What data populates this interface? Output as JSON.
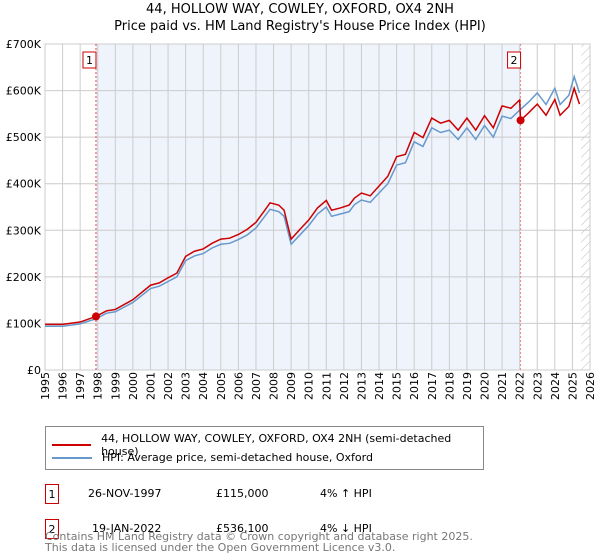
{
  "title": "44, HOLLOW WAY, COWLEY, OXFORD, OX4 2NH",
  "subtitle": "Price paid vs. HM Land Registry's House Price Index (HPI)",
  "chart_data": {
    "type": "line",
    "title": "44, HOLLOW WAY, COWLEY, OXFORD, OX4 2NH",
    "subtitle": "Price paid vs. HM Land Registry's House Price Index (HPI)",
    "xlim": [
      1995,
      2026
    ],
    "ylim": [
      0,
      700000
    ],
    "x_ticks": [
      "1995",
      "1996",
      "1997",
      "1998",
      "1999",
      "2000",
      "2001",
      "2002",
      "2003",
      "2004",
      "2005",
      "2006",
      "2007",
      "2008",
      "2009",
      "2010",
      "2011",
      "2012",
      "2013",
      "2014",
      "2015",
      "2016",
      "2017",
      "2018",
      "2019",
      "2020",
      "2021",
      "2022",
      "2023",
      "2024",
      "2025",
      "2026"
    ],
    "y_ticks": [
      {
        "v": 0,
        "l": "£0"
      },
      {
        "v": 100000,
        "l": "£100K"
      },
      {
        "v": 200000,
        "l": "£200K"
      },
      {
        "v": 300000,
        "l": "£300K"
      },
      {
        "v": 400000,
        "l": "£400K"
      },
      {
        "v": 500000,
        "l": "£500K"
      },
      {
        "v": 600000,
        "l": "£600K"
      },
      {
        "v": 700000,
        "l": "£700K"
      }
    ],
    "grid": true,
    "shaded_range": [
      1997.9,
      2022.05
    ],
    "hatched_from": 2025.5,
    "series": [
      {
        "name": "44, HOLLOW WAY, COWLEY, OXFORD, OX4 2NH (semi-detached house)",
        "color": "#cc0000",
        "x": [
          1995,
          1996,
          1997,
          1997.9,
          1998.5,
          1999,
          2000,
          2001,
          2001.5,
          2002,
          2002.5,
          2003,
          2003.5,
          2004,
          2004.5,
          2005,
          2005.5,
          2006,
          2006.5,
          2007,
          2007.5,
          2007.8,
          2008.3,
          2008.6,
          2009,
          2009.5,
          2010,
          2010.5,
          2011,
          2011.3,
          2011.8,
          2012.3,
          2012.6,
          2013,
          2013.5,
          2014,
          2014.5,
          2015,
          2015.5,
          2016,
          2016.5,
          2017,
          2017.5,
          2018,
          2018.5,
          2019,
          2019.5,
          2020,
          2020.5,
          2021,
          2021.5,
          2022,
          2022.05,
          2022.5,
          2023,
          2023.5,
          2024,
          2024.3,
          2024.8,
          2025.1,
          2025.4
        ],
        "y": [
          98000,
          98000,
          103000,
          115000,
          127000,
          130000,
          151000,
          182000,
          187000,
          198000,
          208000,
          244000,
          255000,
          260000,
          272000,
          281000,
          283000,
          291000,
          302000,
          317000,
          343000,
          359000,
          354000,
          343000,
          281000,
          302000,
          322000,
          348000,
          364000,
          343000,
          348000,
          354000,
          369000,
          380000,
          374000,
          395000,
          416000,
          458000,
          463000,
          510000,
          499000,
          541000,
          530000,
          536000,
          515000,
          541000,
          515000,
          546000,
          520000,
          567000,
          562000,
          580000,
          536100,
          552000,
          571000,
          547000,
          581000,
          547000,
          566000,
          605000,
          571000
        ]
      },
      {
        "name": "HPI: Average price, semi-detached house, Oxford",
        "color": "#6699cc",
        "x": [
          1995,
          1996,
          1997,
          1997.9,
          1998.5,
          1999,
          2000,
          2001,
          2001.5,
          2002,
          2002.5,
          2003,
          2003.5,
          2004,
          2004.5,
          2005,
          2005.5,
          2006,
          2006.5,
          2007,
          2007.5,
          2007.8,
          2008.3,
          2008.6,
          2009,
          2009.5,
          2010,
          2010.5,
          2011,
          2011.3,
          2011.8,
          2012.3,
          2012.6,
          2013,
          2013.5,
          2014,
          2014.5,
          2015,
          2015.5,
          2016,
          2016.5,
          2017,
          2017.5,
          2018,
          2018.5,
          2019,
          2019.5,
          2020,
          2020.5,
          2021,
          2021.5,
          2022,
          2022.5,
          2023,
          2023.5,
          2024,
          2024.3,
          2024.8,
          2025.1,
          2025.4
        ],
        "y": [
          94000,
          94000,
          99000,
          110000,
          122000,
          125000,
          145000,
          175000,
          180000,
          190000,
          200000,
          235000,
          245000,
          250000,
          262000,
          270000,
          272000,
          280000,
          290000,
          305000,
          330000,
          345000,
          340000,
          330000,
          270000,
          290000,
          310000,
          335000,
          350000,
          330000,
          335000,
          340000,
          355000,
          365000,
          360000,
          380000,
          400000,
          440000,
          445000,
          490000,
          480000,
          520000,
          510000,
          515000,
          495000,
          520000,
          495000,
          525000,
          500000,
          545000,
          540000,
          558000,
          575000,
          595000,
          570000,
          605000,
          570000,
          590000,
          630000,
          595000
        ]
      }
    ],
    "annotations": [
      {
        "label": "1",
        "x": 1997.9,
        "y": 115000
      },
      {
        "label": "2",
        "x": 2022.05,
        "y": 536100
      }
    ]
  },
  "legend": [
    {
      "label": "44, HOLLOW WAY, COWLEY, OXFORD, OX4 2NH (semi-detached house)",
      "color": "#cc0000"
    },
    {
      "label": "HPI: Average price, semi-detached house, Oxford",
      "color": "#6699cc"
    }
  ],
  "sales": [
    {
      "num": "1",
      "date": "26-NOV-1997",
      "price": "£115,000",
      "hpi": "4% ↑ HPI"
    },
    {
      "num": "2",
      "date": "19-JAN-2022",
      "price": "£536,100",
      "hpi": "4% ↓ HPI"
    }
  ],
  "footer": [
    "Contains HM Land Registry data © Crown copyright and database right 2025.",
    "This data is licensed under the Open Government Licence v3.0."
  ]
}
